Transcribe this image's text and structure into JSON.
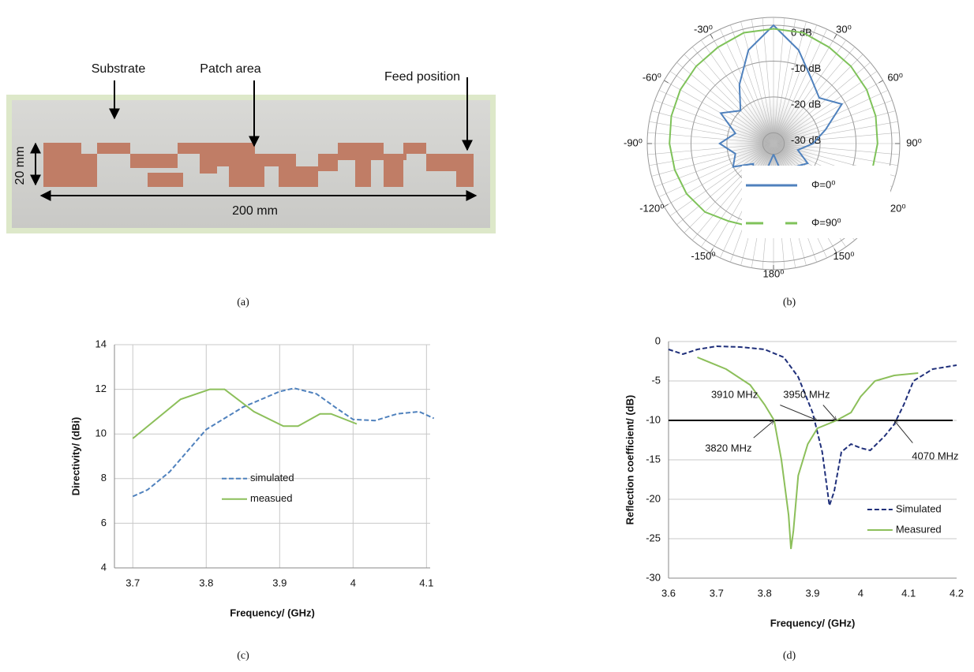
{
  "figure": {
    "photo": {
      "substrate": "Substrate",
      "patch_area": "Patch area",
      "feed_position": "Feed position",
      "width": "20 mm",
      "length": "200 mm"
    },
    "captions": [
      "(a)",
      "(b)",
      "(c)",
      "(d)"
    ]
  },
  "chart_data": [
    {
      "type": "polar",
      "theta": [
        -180,
        -165,
        -150,
        -135,
        -120,
        -105,
        -90,
        -75,
        -60,
        -45,
        -30,
        -15,
        0,
        15,
        30,
        45,
        60,
        75,
        90,
        105,
        120,
        135,
        150,
        165,
        180
      ],
      "rlim": [
        -33,
        0
      ],
      "rticks": [
        {
          "value": 0,
          "label": "0 dB"
        },
        {
          "value": -10,
          "label": "-10 dB"
        },
        {
          "value": -20,
          "label": "-20 dB"
        },
        {
          "value": -30,
          "label": "-30 dB"
        }
      ],
      "thetaticks": [
        {
          "value": -30,
          "label": "-30⁰"
        },
        {
          "value": 30,
          "label": "30⁰"
        },
        {
          "value": -60,
          "label": "-60⁰"
        },
        {
          "value": 60,
          "label": "60⁰"
        },
        {
          "value": -90,
          "label": "-90⁰"
        },
        {
          "value": 90,
          "label": "90⁰"
        },
        {
          "value": -120,
          "label": "-120⁰"
        },
        {
          "value": 120,
          "label": "120⁰"
        },
        {
          "value": -150,
          "label": "-150⁰"
        },
        {
          "value": 150,
          "label": "150⁰"
        },
        {
          "value": 180,
          "label": "180⁰"
        }
      ],
      "legend": "lower right",
      "series": [
        {
          "name": "Φ=0⁰",
          "color": "#4f81bd",
          "dash": false,
          "values": [
            -30,
            -25,
            -22,
            -25,
            -20,
            -22,
            -18,
            -22,
            -16,
            -20,
            -14,
            -6,
            0,
            -6,
            -12,
            -15,
            -11,
            -18,
            -22,
            -26,
            -22,
            -24,
            -20,
            -25,
            -30
          ]
        },
        {
          "name": "Φ=90⁰",
          "color": "#7fc25a",
          "dash": false,
          "values": [
            -10,
            -9,
            -8,
            -6,
            -5,
            -4.5,
            -4,
            -3.5,
            -3,
            -2.5,
            -2,
            -1,
            -1,
            -1,
            -2,
            -2.5,
            -3,
            -3.5,
            -4,
            -4.5,
            -5,
            -6,
            -8,
            -9,
            -10
          ]
        }
      ]
    },
    {
      "type": "line",
      "xlabel": "Frequency/ (GHz)",
      "ylabel": "Directivity/ (dBi)",
      "xlim": [
        3.675,
        4.105
      ],
      "ylim": [
        4,
        14
      ],
      "xticks": [
        3.7,
        3.8,
        3.9,
        4,
        4.1
      ],
      "yticks": [
        4,
        6,
        8,
        10,
        12,
        14
      ],
      "grid": "both",
      "legend": "center",
      "series": [
        {
          "name": "simulated",
          "color": "#4f81bd",
          "dash": true,
          "x": [
            3.7,
            3.72,
            3.75,
            3.8,
            3.85,
            3.9,
            3.92,
            3.95,
            3.98,
            4.0,
            4.03,
            4.06,
            4.09,
            4.11
          ],
          "values": [
            7.2,
            7.5,
            8.3,
            10.2,
            11.2,
            11.9,
            12.05,
            11.8,
            11.1,
            10.65,
            10.6,
            10.9,
            11.0,
            10.7
          ]
        },
        {
          "name": "measued",
          "color": "#8cbf5a",
          "dash": false,
          "x": [
            3.7,
            3.765,
            3.805,
            3.825,
            3.865,
            3.905,
            3.925,
            3.955,
            3.97,
            4.005
          ],
          "values": [
            9.8,
            11.55,
            12.0,
            12.0,
            11.0,
            10.35,
            10.35,
            10.9,
            10.9,
            10.45
          ]
        }
      ]
    },
    {
      "type": "line",
      "xlabel": "Frequency/ (GHz)",
      "ylabel": "Reflection coefficient/ (dB)",
      "xlim": [
        3.6,
        4.2
      ],
      "ylim": [
        -30,
        0
      ],
      "xticks": [
        3.6,
        3.7,
        3.8,
        3.9,
        4,
        4.1,
        4.2
      ],
      "yticks": [
        -30,
        -25,
        -20,
        -15,
        -10,
        -5,
        0
      ],
      "grid": "y",
      "legend": "lower right",
      "threshold": -10,
      "annotations": [
        {
          "label": "3910 MHz",
          "x": 3.91,
          "y": -10
        },
        {
          "label": "3950 MHz",
          "x": 3.95,
          "y": -10
        },
        {
          "label": "3820 MHz",
          "x": 3.82,
          "y": -10
        },
        {
          "label": "4070 MHz",
          "x": 4.07,
          "y": -10
        }
      ],
      "series": [
        {
          "name": "Simulated",
          "color": "#1f2f7a",
          "dash": true,
          "x": [
            3.6,
            3.63,
            3.66,
            3.7,
            3.75,
            3.8,
            3.84,
            3.87,
            3.9,
            3.92,
            3.935,
            3.945,
            3.96,
            3.98,
            4.0,
            4.02,
            4.05,
            4.07,
            4.09,
            4.11,
            4.15,
            4.2
          ],
          "values": [
            -1,
            -1.6,
            -1.0,
            -0.6,
            -0.7,
            -1.0,
            -2,
            -4.5,
            -9,
            -14,
            -20.8,
            -19,
            -14,
            -13,
            -13.5,
            -13.8,
            -12,
            -10.5,
            -8,
            -5,
            -3.5,
            -3
          ]
        },
        {
          "name": "Measured",
          "color": "#8cbf5a",
          "dash": false,
          "x": [
            3.66,
            3.72,
            3.77,
            3.8,
            3.82,
            3.835,
            3.85,
            3.855,
            3.86,
            3.87,
            3.89,
            3.91,
            3.95,
            3.98,
            4.0,
            4.03,
            4.07,
            4.12
          ],
          "values": [
            -2,
            -3.5,
            -5.5,
            -8,
            -10,
            -15,
            -22,
            -26.3,
            -24,
            -17,
            -13,
            -11,
            -10,
            -9,
            -7,
            -5,
            -4.3,
            -4
          ]
        }
      ]
    }
  ]
}
